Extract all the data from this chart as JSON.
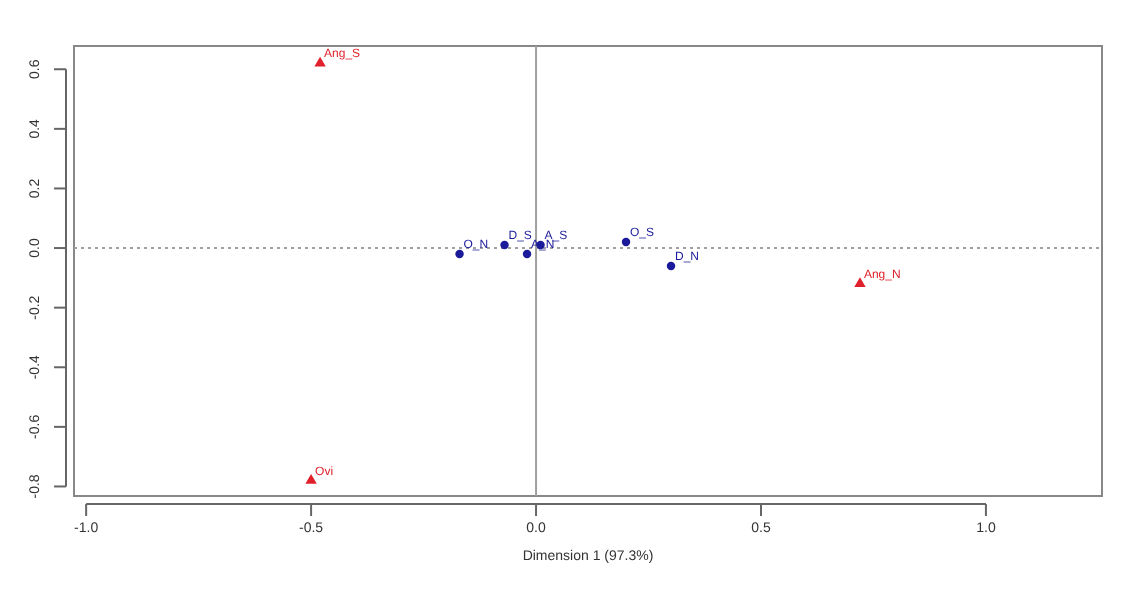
{
  "chart_data": {
    "type": "scatter",
    "xlabel": "Dimension 1 (97.3%)",
    "xlim": [
      -1.027,
      1.258
    ],
    "ylim": [
      -0.832,
      0.678
    ],
    "xticks": [
      {
        "value": -1,
        "label": "-1.0"
      },
      {
        "value": -0.5,
        "label": "-0.5"
      },
      {
        "value": 0,
        "label": "0.0"
      },
      {
        "value": 0.5,
        "label": "0.5"
      },
      {
        "value": 1,
        "label": "1.0"
      }
    ],
    "yticks": [
      {
        "value": -0.8,
        "label": "-0.8"
      },
      {
        "value": -0.6,
        "label": "-0.6"
      },
      {
        "value": -0.4,
        "label": "-0.4"
      },
      {
        "value": -0.2,
        "label": "-0.2"
      },
      {
        "value": 0,
        "label": "0.0"
      },
      {
        "value": 0.2,
        "label": "0.2"
      },
      {
        "value": 0.4,
        "label": "0.4"
      },
      {
        "value": 0.6,
        "label": "0.6"
      }
    ],
    "ref_lines": [
      {
        "axis": "x",
        "value": 0,
        "color": "#a0a0a0",
        "line_style": "solid"
      },
      {
        "axis": "y",
        "value": 0,
        "color": "#a0a0a0",
        "line_style": "dotted"
      }
    ],
    "series": [
      {
        "color": "#e0202a",
        "marker": "triangle",
        "x": [
          -0.48,
          -0.5,
          0.72
        ],
        "values": [
          0.62,
          -0.78,
          -0.12
        ],
        "value_labels": [
          "Ang_S",
          "Ovi",
          "Ang_N"
        ]
      },
      {
        "color": "#1a1a9a",
        "marker": "circle",
        "x": [
          -0.17,
          -0.07,
          0.01,
          -0.02,
          0.2,
          0.3
        ],
        "values": [
          -0.02,
          0.01,
          0.01,
          -0.02,
          0.02,
          -0.06
        ],
        "value_labels": [
          "O_N",
          "D_S",
          "A_S",
          "A_N",
          "O_S",
          "D_N"
        ]
      }
    ]
  }
}
